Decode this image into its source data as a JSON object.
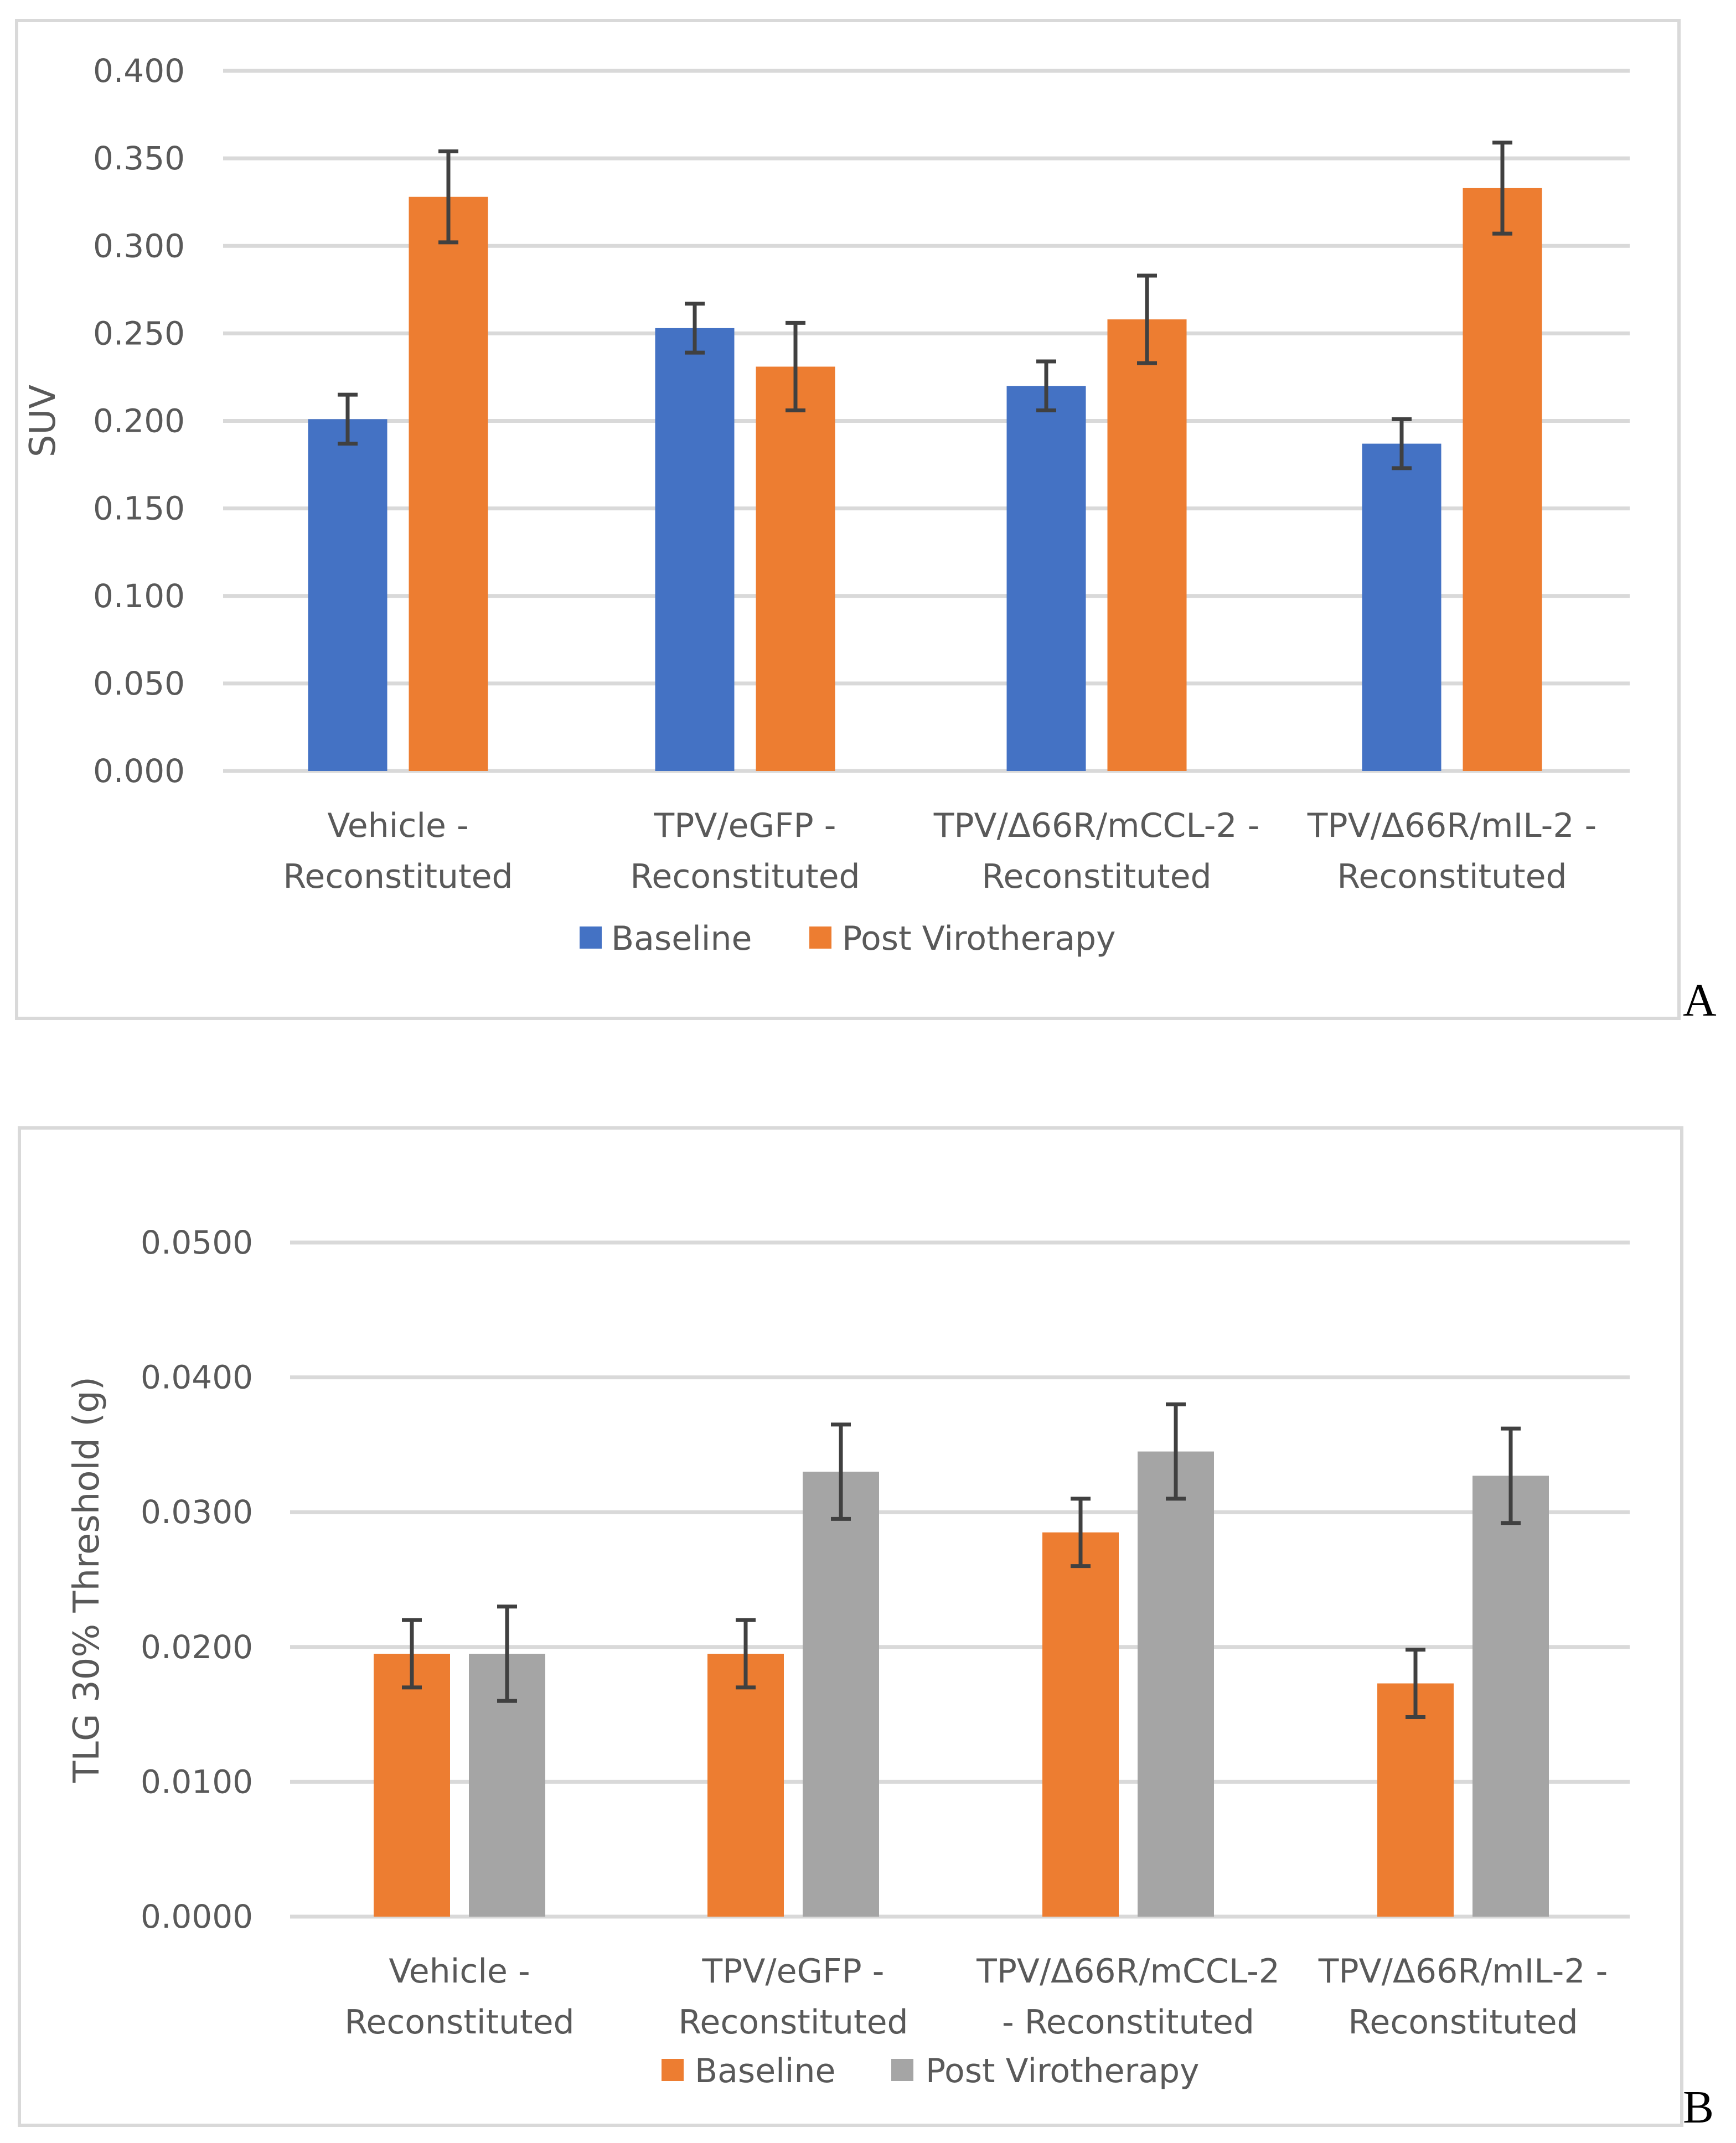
{
  "chart_data": [
    {
      "panel": "A",
      "type": "bar",
      "ylabel": "SUV",
      "xlabel": "",
      "ylim": [
        0,
        0.4
      ],
      "yticks": [
        "0.000",
        "0.050",
        "0.100",
        "0.150",
        "0.200",
        "0.250",
        "0.300",
        "0.350",
        "0.400"
      ],
      "grid": true,
      "legend_position": "bottom",
      "categories": [
        [
          "Vehicle -",
          "Reconstituted"
        ],
        [
          "TPV/eGFP -",
          "Reconstituted"
        ],
        [
          "TPV/Δ66R/mCCL-2 -",
          "Reconstituted"
        ],
        [
          "TPV/Δ66R/mIL-2 -",
          "Reconstituted"
        ]
      ],
      "series": [
        {
          "name": "Baseline",
          "color": "#4472C4",
          "values": [
            0.201,
            0.253,
            0.22,
            0.187
          ],
          "errors": [
            0.014,
            0.014,
            0.014,
            0.014
          ]
        },
        {
          "name": "Post Virotherapy",
          "color": "#ED7D31",
          "values": [
            0.328,
            0.231,
            0.258,
            0.333
          ],
          "errors": [
            0.026,
            0.025,
            0.025,
            0.026
          ]
        }
      ]
    },
    {
      "panel": "B",
      "type": "bar",
      "ylabel": "TLG 30% Threshold  (g)",
      "xlabel": "",
      "ylim": [
        0,
        0.05
      ],
      "yticks": [
        "0.0000",
        "0.0100",
        "0.0200",
        "0.0300",
        "0.0400",
        "0.0500"
      ],
      "grid": true,
      "legend_position": "bottom",
      "categories": [
        [
          "Vehicle -",
          "Reconstituted"
        ],
        [
          "TPV/eGFP -",
          "Reconstituted"
        ],
        [
          "TPV/Δ66R/mCCL-2",
          "- Reconstituted"
        ],
        [
          "TPV/Δ66R/mIL-2 -",
          "Reconstituted"
        ]
      ],
      "series": [
        {
          "name": "Baseline",
          "color": "#ED7D31",
          "values": [
            0.0195,
            0.0195,
            0.0285,
            0.0173
          ],
          "errors": [
            0.0025,
            0.0025,
            0.0025,
            0.0025
          ]
        },
        {
          "name": "Post Virotherapy",
          "color": "#A5A5A5",
          "values": [
            0.0195,
            0.033,
            0.0345,
            0.0327
          ],
          "errors": [
            0.0035,
            0.0035,
            0.0035,
            0.0035
          ]
        }
      ]
    }
  ]
}
